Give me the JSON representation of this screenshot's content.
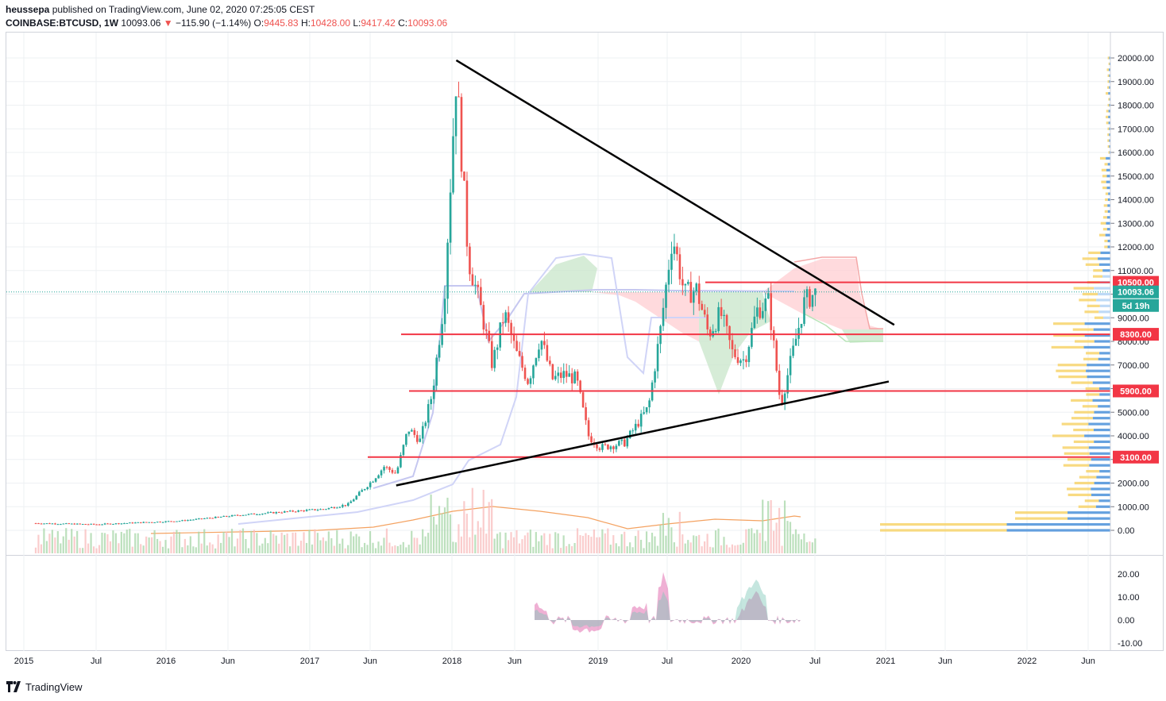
{
  "header": {
    "publisher": "heussepa",
    "published_text": "published on TradingView.com, June 02, 2020 07:25:05 CEST",
    "symbol": "COINBASE:BTCUSD",
    "interval": "1W",
    "last": "10093.06",
    "change": "−115.90 (−1.14%)",
    "o_label": "O:",
    "o": "9445.83",
    "h_label": "H:",
    "h": "10428.00",
    "l_label": "L:",
    "l": "9417.42",
    "c_label": "C:",
    "c": "10093.06"
  },
  "footer": {
    "brand": "TradingView"
  },
  "colors": {
    "up": "#26a69a",
    "down": "#ef5350",
    "level": "#f23645",
    "trend": "#000000",
    "grid": "#eef0f3"
  },
  "chart_data": {
    "type": "candlestick",
    "xlabels": [
      "2015",
      "Jul",
      "2016",
      "Jun",
      "2017",
      "Jun",
      "2018",
      "Jun",
      "2019",
      "Jul",
      "2020",
      "Jul",
      "2021",
      "Jun",
      "2022",
      "Jun"
    ],
    "y_ticks": [
      "20000.00",
      "19000.00",
      "18000.00",
      "17000.00",
      "16000.00",
      "15000.00",
      "14000.00",
      "13000.00",
      "12000.00",
      "11000.00",
      "10000.00",
      "9000.00",
      "8000.00",
      "7000.00",
      "6000.00",
      "5000.00",
      "4000.00",
      "3000.00",
      "2000.00",
      "1000.00",
      "0.00"
    ],
    "ylim": [
      -300,
      20300
    ],
    "osc_ticks": [
      "20.00",
      "10.00",
      "0.00",
      "-10.00"
    ],
    "price_tags": [
      {
        "label": "10500.00",
        "value": 10500,
        "color": "#f23645"
      },
      {
        "label": "10093.06",
        "value": 10093,
        "color": "#26a69a"
      },
      {
        "label": "5d 19h",
        "value": 9520,
        "color": "#26a69a"
      },
      {
        "label": "8300.00",
        "value": 8300,
        "color": "#f23645"
      },
      {
        "label": "5900.00",
        "value": 5900,
        "color": "#f23645"
      },
      {
        "label": "3100.00",
        "value": 3100,
        "color": "#f23645"
      }
    ],
    "horizontal_levels": [
      10500,
      8300,
      5900,
      3100
    ],
    "trendlines": [
      {
        "name": "descending",
        "from": [
          "2017-12",
          19900
        ],
        "to": [
          "2020-11",
          8700
        ]
      },
      {
        "name": "ascending",
        "from": [
          "2017-07",
          1900
        ],
        "to": [
          "2020-12",
          6300
        ]
      }
    ],
    "weekly_close_path": [
      [
        "2015-01",
        300
      ],
      [
        "2015-06",
        250
      ],
      [
        "2016-01",
        400
      ],
      [
        "2016-06",
        650
      ],
      [
        "2017-01",
        900
      ],
      [
        "2017-03",
        1100
      ],
      [
        "2017-05",
        2100
      ],
      [
        "2017-06",
        2700
      ],
      [
        "2017-07",
        2400
      ],
      [
        "2017-08",
        4300
      ],
      [
        "2017-09",
        3800
      ],
      [
        "2017-10",
        5800
      ],
      [
        "2017-11",
        9800
      ],
      [
        "2017-12",
        19300
      ],
      [
        "2018-01",
        11500
      ],
      [
        "2018-02",
        9500
      ],
      [
        "2018-03",
        7000
      ],
      [
        "2018-04",
        9200
      ],
      [
        "2018-05",
        7500
      ],
      [
        "2018-06",
        6300
      ],
      [
        "2018-07",
        8200
      ],
      [
        "2018-08",
        6400
      ],
      [
        "2018-09",
        6600
      ],
      [
        "2018-10",
        6400
      ],
      [
        "2018-11",
        4000
      ],
      [
        "2018-12",
        3500
      ],
      [
        "2019-02",
        3700
      ],
      [
        "2019-04",
        5200
      ],
      [
        "2019-05",
        8500
      ],
      [
        "2019-06",
        12500
      ],
      [
        "2019-07",
        10000
      ],
      [
        "2019-08",
        10200
      ],
      [
        "2019-09",
        8300
      ],
      [
        "2019-10",
        9200
      ],
      [
        "2019-11",
        7500
      ],
      [
        "2019-12",
        7200
      ],
      [
        "2020-01",
        9300
      ],
      [
        "2020-02",
        9700
      ],
      [
        "2020-03",
        5300
      ],
      [
        "2020-04",
        7500
      ],
      [
        "2020-05",
        9700
      ],
      [
        "2020-06",
        10093
      ]
    ]
  }
}
